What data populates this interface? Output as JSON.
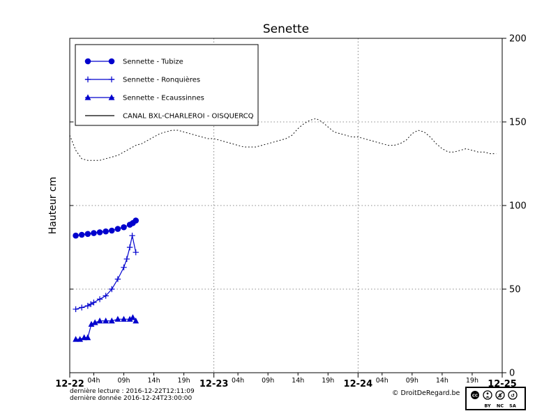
{
  "title": "Senette",
  "ylabel": "Hauteur cm",
  "footer": {
    "line1": "dernière lecture : 2016-12-22T12:11:09",
    "line2": "dernière donnée  2016-12-24T23:00:00",
    "copyright": "© DroitDeRegard.be",
    "license_logo": "CC",
    "license_labels": [
      "BY",
      "NC",
      "SA"
    ]
  },
  "legend": {
    "entries": [
      {
        "label": "Sennette - Tubize",
        "marker": "circle",
        "color": "#0000cd"
      },
      {
        "label": "Sennette - Ronquières",
        "marker": "plus",
        "color": "#0000cd"
      },
      {
        "label": "Sennette - Ecaussinnes",
        "marker": "triangle",
        "color": "#0000cd"
      },
      {
        "label": "CANAL BXL-CHARLEROI  - OISQUERCQ",
        "marker": "none",
        "color": "#000000"
      }
    ]
  },
  "chart_data": {
    "type": "line",
    "title": "Senette",
    "ylabel": "Hauteur cm",
    "x_unit": "hours since 2016-12-22 00:00",
    "xlim": [
      0,
      72
    ],
    "ylim": [
      0,
      200
    ],
    "yticks": [
      0,
      50,
      100,
      150,
      200
    ],
    "x_major_ticks": [
      {
        "h": 0,
        "label": "12-22"
      },
      {
        "h": 24,
        "label": "12-23"
      },
      {
        "h": 48,
        "label": "12-24"
      },
      {
        "h": 72,
        "label": "12-25"
      }
    ],
    "x_minor_ticks": [
      {
        "h": 4,
        "label": "04h"
      },
      {
        "h": 9,
        "label": "09h"
      },
      {
        "h": 14,
        "label": "14h"
      },
      {
        "h": 19,
        "label": "19h"
      },
      {
        "h": 28,
        "label": "04h"
      },
      {
        "h": 33,
        "label": "09h"
      },
      {
        "h": 38,
        "label": "14h"
      },
      {
        "h": 43,
        "label": "19h"
      },
      {
        "h": 52,
        "label": "04h"
      },
      {
        "h": 57,
        "label": "09h"
      },
      {
        "h": 62,
        "label": "14h"
      },
      {
        "h": 67,
        "label": "19h"
      }
    ],
    "grid_y": [
      50,
      100,
      150
    ],
    "grid_x": [
      24,
      48
    ],
    "legend_position": "upper-left",
    "series": [
      {
        "name": "Sennette - Tubize",
        "marker": "circle",
        "color": "#0000cd",
        "line": "solid",
        "points": [
          [
            1,
            82
          ],
          [
            2,
            82.5
          ],
          [
            3,
            83
          ],
          [
            4,
            83.5
          ],
          [
            5,
            84
          ],
          [
            6,
            84.5
          ],
          [
            7,
            85
          ],
          [
            8,
            86
          ],
          [
            9,
            87
          ],
          [
            10,
            88.5
          ],
          [
            10.5,
            89.5
          ],
          [
            11,
            91
          ]
        ]
      },
      {
        "name": "Sennette - Ronquières",
        "marker": "plus",
        "color": "#0000cd",
        "line": "solid",
        "points": [
          [
            1,
            38
          ],
          [
            2,
            39
          ],
          [
            3,
            40
          ],
          [
            3.5,
            41
          ],
          [
            4,
            42
          ],
          [
            5,
            44
          ],
          [
            6,
            46
          ],
          [
            7,
            50
          ],
          [
            8,
            56
          ],
          [
            9,
            63
          ],
          [
            9.5,
            68
          ],
          [
            10,
            75
          ],
          [
            10.4,
            82
          ],
          [
            11,
            72
          ]
        ]
      },
      {
        "name": "Sennette - Ecaussinnes",
        "marker": "triangle",
        "color": "#0000cd",
        "line": "solid",
        "points": [
          [
            1,
            20
          ],
          [
            1.7,
            20
          ],
          [
            2.4,
            21
          ],
          [
            3,
            21
          ],
          [
            3.6,
            29
          ],
          [
            4.2,
            30
          ],
          [
            5,
            31
          ],
          [
            6,
            31
          ],
          [
            7,
            31
          ],
          [
            8,
            32
          ],
          [
            9,
            32
          ],
          [
            10,
            32
          ],
          [
            10.5,
            33
          ],
          [
            11,
            31
          ]
        ]
      },
      {
        "name": "CANAL BXL-CHARLEROI - OISQUERCQ",
        "marker": "none",
        "color": "#000000",
        "line": "dotted",
        "x_start": 0,
        "x_step": 1,
        "values": [
          142,
          133,
          128,
          127,
          127,
          127,
          128,
          129,
          130,
          132,
          134,
          136,
          137,
          139,
          141,
          143,
          144,
          145,
          145,
          144,
          143,
          142,
          141,
          140,
          140,
          139,
          138,
          137,
          136,
          135,
          135,
          135,
          136,
          137,
          138,
          139,
          140,
          142,
          146,
          149,
          151,
          152,
          150,
          147,
          144,
          143,
          142,
          141,
          141,
          140,
          139,
          138,
          137,
          136,
          136,
          137,
          139,
          143,
          145,
          144,
          141,
          137,
          134,
          132,
          132,
          133,
          134,
          133,
          132,
          132,
          131,
          131
        ]
      }
    ]
  }
}
